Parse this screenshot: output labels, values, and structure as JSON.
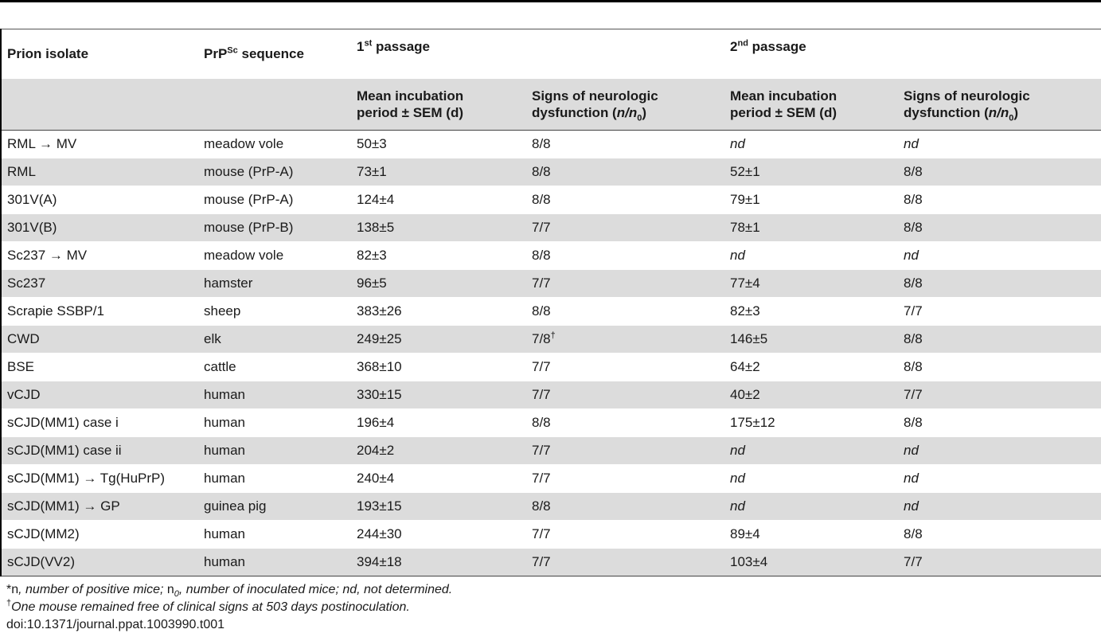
{
  "table": {
    "headers": {
      "prion_isolate": "Prion isolate",
      "prp_sequence_base": "PrP",
      "prp_sequence_sup": "Sc",
      "prp_sequence_tail": " sequence",
      "passage1_num": "1",
      "passage1_sup": "st",
      "passage1_tail": " passage",
      "passage2_num": "2",
      "passage2_sup": "nd",
      "passage2_tail": " passage",
      "mean_incubation_line1": "Mean incubation",
      "mean_incubation_line2": "period ± SEM (d)",
      "signs_line1": "Signs of neurologic",
      "signs_line2_pre": "dysfunction (",
      "signs_n": "n",
      "signs_slash": "/",
      "signs_n0": "n",
      "signs_n0_sub": "0",
      "signs_close": ")"
    },
    "rows": [
      {
        "isolate": "RML → MV",
        "sequence": "meadow vole",
        "p1_incubation": "50±3",
        "p1_signs": "8/8",
        "p1_signs_mark": "",
        "p2_incubation": "nd",
        "p2_signs": "nd"
      },
      {
        "isolate": "RML",
        "sequence": "mouse (PrP-A)",
        "p1_incubation": "73±1",
        "p1_signs": "8/8",
        "p1_signs_mark": "",
        "p2_incubation": "52±1",
        "p2_signs": "8/8"
      },
      {
        "isolate": "301V(A)",
        "sequence": "mouse (PrP-A)",
        "p1_incubation": "124±4",
        "p1_signs": "8/8",
        "p1_signs_mark": "",
        "p2_incubation": "79±1",
        "p2_signs": "8/8"
      },
      {
        "isolate": "301V(B)",
        "sequence": "mouse (PrP-B)",
        "p1_incubation": "138±5",
        "p1_signs": "7/7",
        "p1_signs_mark": "",
        "p2_incubation": "78±1",
        "p2_signs": "8/8"
      },
      {
        "isolate": "Sc237 → MV",
        "sequence": "meadow vole",
        "p1_incubation": "82±3",
        "p1_signs": "8/8",
        "p1_signs_mark": "",
        "p2_incubation": "nd",
        "p2_signs": "nd"
      },
      {
        "isolate": "Sc237",
        "sequence": "hamster",
        "p1_incubation": "96±5",
        "p1_signs": "7/7",
        "p1_signs_mark": "",
        "p2_incubation": "77±4",
        "p2_signs": "8/8"
      },
      {
        "isolate": "Scrapie SSBP/1",
        "sequence": "sheep",
        "p1_incubation": "383±26",
        "p1_signs": "8/8",
        "p1_signs_mark": "",
        "p2_incubation": "82±3",
        "p2_signs": "7/7"
      },
      {
        "isolate": "CWD",
        "sequence": "elk",
        "p1_incubation": "249±25",
        "p1_signs": "7/8",
        "p1_signs_mark": "†",
        "p2_incubation": "146±5",
        "p2_signs": "8/8"
      },
      {
        "isolate": "BSE",
        "sequence": "cattle",
        "p1_incubation": "368±10",
        "p1_signs": "7/7",
        "p1_signs_mark": "",
        "p2_incubation": "64±2",
        "p2_signs": "8/8"
      },
      {
        "isolate": "vCJD",
        "sequence": "human",
        "p1_incubation": "330±15",
        "p1_signs": "7/7",
        "p1_signs_mark": "",
        "p2_incubation": "40±2",
        "p2_signs": "7/7"
      },
      {
        "isolate": "sCJD(MM1) case i",
        "sequence": "human",
        "p1_incubation": "196±4",
        "p1_signs": "8/8",
        "p1_signs_mark": "",
        "p2_incubation": "175±12",
        "p2_signs": "8/8"
      },
      {
        "isolate": "sCJD(MM1) case ii",
        "sequence": "human",
        "p1_incubation": "204±2",
        "p1_signs": "7/7",
        "p1_signs_mark": "",
        "p2_incubation": "nd",
        "p2_signs": "nd"
      },
      {
        "isolate": "sCJD(MM1) → Tg(HuPrP)",
        "sequence": "human",
        "p1_incubation": "240±4",
        "p1_signs": "7/7",
        "p1_signs_mark": "",
        "p2_incubation": "nd",
        "p2_signs": "nd"
      },
      {
        "isolate": "sCJD(MM1) → GP",
        "sequence": "guinea pig",
        "p1_incubation": "193±15",
        "p1_signs": "8/8",
        "p1_signs_mark": "",
        "p2_incubation": "nd",
        "p2_signs": "nd"
      },
      {
        "isolate": "sCJD(MM2)",
        "sequence": "human",
        "p1_incubation": "244±30",
        "p1_signs": "7/7",
        "p1_signs_mark": "",
        "p2_incubation": "89±4",
        "p2_signs": "8/8"
      },
      {
        "isolate": "sCJD(VV2)",
        "sequence": "human",
        "p1_incubation": "394±18",
        "p1_signs": "7/7",
        "p1_signs_mark": "",
        "p2_incubation": "103±4",
        "p2_signs": "7/7"
      }
    ]
  },
  "footnotes": {
    "note1_star": "*n",
    "note1_a": ", number of positive mice; ",
    "note1_n": "n",
    "note1_n_sub": "0",
    "note1_b": ", number of inoculated mice; nd, not determined.",
    "note2_mark": "†",
    "note2_text": "One mouse remained free of clinical signs at 503 days postinoculation.",
    "doi": "doi:10.1371/journal.ppat.1003990.t001"
  }
}
